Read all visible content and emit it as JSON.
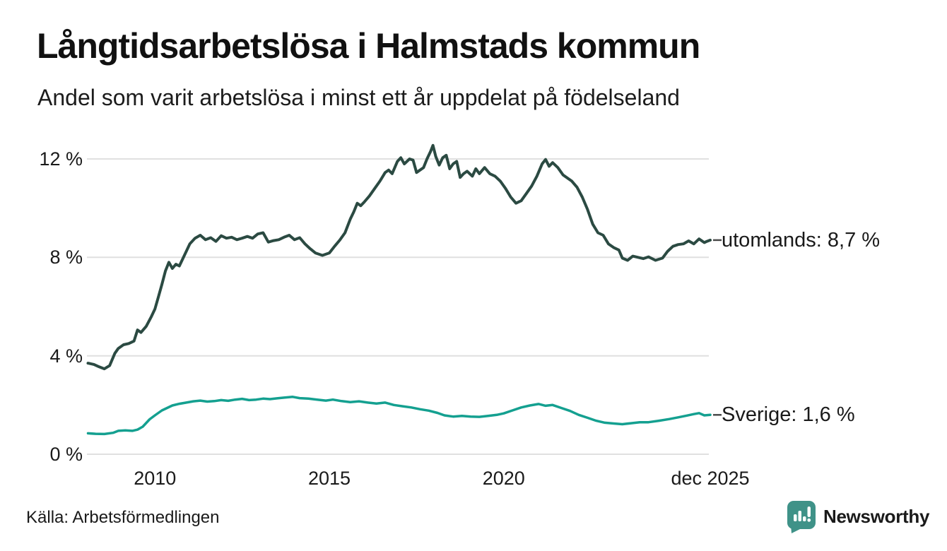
{
  "chart_data": {
    "type": "line",
    "title": "Långtidsarbetslösa i Halmstads kommun",
    "subtitle": "Andel som varit arbetslösa i minst ett år uppdelat på födelseland",
    "xlabel": "",
    "ylabel": "",
    "grid": true,
    "legend_position": "end-of-line-labels",
    "xlim": [
      2008.05,
      2025.92
    ],
    "ylim": [
      0,
      12
    ],
    "x_ticks": [
      {
        "value": 2010,
        "label": "2010"
      },
      {
        "value": 2015,
        "label": "2015"
      },
      {
        "value": 2020,
        "label": "2020"
      },
      {
        "value": 2025.92,
        "label": "dec 2025"
      }
    ],
    "y_ticks": [
      {
        "value": 12,
        "label": "12 %"
      },
      {
        "value": 8,
        "label": "8 %"
      },
      {
        "value": 4,
        "label": "4 %"
      },
      {
        "value": 0,
        "label": "0 %"
      }
    ],
    "series": [
      {
        "name": "utomlands",
        "label": "utomlands: 8,7 %",
        "end_value": 8.7,
        "color": "#2b4a42",
        "points": [
          [
            2008.08,
            3.7
          ],
          [
            2008.25,
            3.65
          ],
          [
            2008.4,
            3.55
          ],
          [
            2008.55,
            3.47
          ],
          [
            2008.7,
            3.6
          ],
          [
            2008.85,
            4.1
          ],
          [
            2008.95,
            4.3
          ],
          [
            2009.1,
            4.45
          ],
          [
            2009.25,
            4.5
          ],
          [
            2009.4,
            4.6
          ],
          [
            2009.5,
            5.05
          ],
          [
            2009.6,
            4.95
          ],
          [
            2009.75,
            5.2
          ],
          [
            2009.9,
            5.6
          ],
          [
            2010.0,
            5.9
          ],
          [
            2010.1,
            6.4
          ],
          [
            2010.2,
            6.9
          ],
          [
            2010.3,
            7.45
          ],
          [
            2010.4,
            7.8
          ],
          [
            2010.5,
            7.55
          ],
          [
            2010.6,
            7.72
          ],
          [
            2010.7,
            7.65
          ],
          [
            2010.85,
            8.1
          ],
          [
            2011.0,
            8.55
          ],
          [
            2011.15,
            8.78
          ],
          [
            2011.3,
            8.9
          ],
          [
            2011.45,
            8.72
          ],
          [
            2011.6,
            8.8
          ],
          [
            2011.75,
            8.65
          ],
          [
            2011.9,
            8.88
          ],
          [
            2012.05,
            8.78
          ],
          [
            2012.2,
            8.82
          ],
          [
            2012.35,
            8.72
          ],
          [
            2012.5,
            8.78
          ],
          [
            2012.65,
            8.85
          ],
          [
            2012.8,
            8.78
          ],
          [
            2012.95,
            8.95
          ],
          [
            2013.1,
            9.0
          ],
          [
            2013.25,
            8.62
          ],
          [
            2013.4,
            8.68
          ],
          [
            2013.55,
            8.72
          ],
          [
            2013.7,
            8.82
          ],
          [
            2013.85,
            8.9
          ],
          [
            2014.0,
            8.72
          ],
          [
            2014.15,
            8.8
          ],
          [
            2014.3,
            8.55
          ],
          [
            2014.45,
            8.35
          ],
          [
            2014.6,
            8.18
          ],
          [
            2014.8,
            8.08
          ],
          [
            2015.0,
            8.18
          ],
          [
            2015.15,
            8.45
          ],
          [
            2015.3,
            8.7
          ],
          [
            2015.45,
            9.0
          ],
          [
            2015.6,
            9.55
          ],
          [
            2015.7,
            9.85
          ],
          [
            2015.8,
            10.2
          ],
          [
            2015.9,
            10.1
          ],
          [
            2016.0,
            10.25
          ],
          [
            2016.15,
            10.5
          ],
          [
            2016.3,
            10.8
          ],
          [
            2016.45,
            11.1
          ],
          [
            2016.6,
            11.45
          ],
          [
            2016.7,
            11.55
          ],
          [
            2016.8,
            11.4
          ],
          [
            2016.95,
            11.9
          ],
          [
            2017.05,
            12.05
          ],
          [
            2017.15,
            11.8
          ],
          [
            2017.3,
            12.0
          ],
          [
            2017.4,
            11.95
          ],
          [
            2017.5,
            11.45
          ],
          [
            2017.6,
            11.55
          ],
          [
            2017.7,
            11.65
          ],
          [
            2017.8,
            12.0
          ],
          [
            2017.9,
            12.3
          ],
          [
            2017.97,
            12.55
          ],
          [
            2018.05,
            12.1
          ],
          [
            2018.15,
            11.75
          ],
          [
            2018.25,
            12.05
          ],
          [
            2018.35,
            12.15
          ],
          [
            2018.45,
            11.6
          ],
          [
            2018.55,
            11.8
          ],
          [
            2018.65,
            11.9
          ],
          [
            2018.75,
            11.25
          ],
          [
            2018.85,
            11.4
          ],
          [
            2018.95,
            11.5
          ],
          [
            2019.1,
            11.3
          ],
          [
            2019.2,
            11.6
          ],
          [
            2019.3,
            11.4
          ],
          [
            2019.45,
            11.65
          ],
          [
            2019.6,
            11.4
          ],
          [
            2019.75,
            11.3
          ],
          [
            2019.9,
            11.1
          ],
          [
            2020.05,
            10.8
          ],
          [
            2020.2,
            10.45
          ],
          [
            2020.35,
            10.2
          ],
          [
            2020.5,
            10.3
          ],
          [
            2020.65,
            10.6
          ],
          [
            2020.8,
            10.9
          ],
          [
            2020.95,
            11.3
          ],
          [
            2021.1,
            11.8
          ],
          [
            2021.2,
            11.98
          ],
          [
            2021.3,
            11.7
          ],
          [
            2021.4,
            11.85
          ],
          [
            2021.55,
            11.65
          ],
          [
            2021.7,
            11.35
          ],
          [
            2021.85,
            11.2
          ],
          [
            2021.95,
            11.1
          ],
          [
            2022.1,
            10.85
          ],
          [
            2022.25,
            10.45
          ],
          [
            2022.4,
            9.95
          ],
          [
            2022.55,
            9.35
          ],
          [
            2022.7,
            9.0
          ],
          [
            2022.85,
            8.9
          ],
          [
            2023.0,
            8.55
          ],
          [
            2023.15,
            8.4
          ],
          [
            2023.3,
            8.3
          ],
          [
            2023.4,
            7.97
          ],
          [
            2023.55,
            7.88
          ],
          [
            2023.7,
            8.05
          ],
          [
            2023.85,
            8.0
          ],
          [
            2024.0,
            7.95
          ],
          [
            2024.15,
            8.02
          ],
          [
            2024.35,
            7.88
          ],
          [
            2024.55,
            7.97
          ],
          [
            2024.7,
            8.25
          ],
          [
            2024.85,
            8.45
          ],
          [
            2025.0,
            8.52
          ],
          [
            2025.15,
            8.55
          ],
          [
            2025.3,
            8.67
          ],
          [
            2025.45,
            8.55
          ],
          [
            2025.6,
            8.75
          ],
          [
            2025.75,
            8.6
          ],
          [
            2025.82,
            8.65
          ],
          [
            2025.92,
            8.7
          ]
        ]
      },
      {
        "name": "Sverige",
        "label": "Sverige: 1,6 %",
        "end_value": 1.6,
        "color": "#14a090",
        "points": [
          [
            2008.08,
            0.85
          ],
          [
            2008.3,
            0.83
          ],
          [
            2008.55,
            0.82
          ],
          [
            2008.8,
            0.87
          ],
          [
            2008.95,
            0.95
          ],
          [
            2009.15,
            0.97
          ],
          [
            2009.35,
            0.95
          ],
          [
            2009.5,
            1.0
          ],
          [
            2009.65,
            1.12
          ],
          [
            2009.85,
            1.42
          ],
          [
            2010.0,
            1.58
          ],
          [
            2010.2,
            1.78
          ],
          [
            2010.35,
            1.88
          ],
          [
            2010.5,
            1.98
          ],
          [
            2010.7,
            2.05
          ],
          [
            2010.9,
            2.1
          ],
          [
            2011.1,
            2.15
          ],
          [
            2011.3,
            2.18
          ],
          [
            2011.5,
            2.14
          ],
          [
            2011.7,
            2.16
          ],
          [
            2011.9,
            2.2
          ],
          [
            2012.1,
            2.17
          ],
          [
            2012.3,
            2.22
          ],
          [
            2012.5,
            2.25
          ],
          [
            2012.7,
            2.2
          ],
          [
            2012.9,
            2.22
          ],
          [
            2013.1,
            2.26
          ],
          [
            2013.3,
            2.24
          ],
          [
            2013.5,
            2.27
          ],
          [
            2013.7,
            2.3
          ],
          [
            2013.95,
            2.33
          ],
          [
            2014.15,
            2.28
          ],
          [
            2014.4,
            2.26
          ],
          [
            2014.65,
            2.22
          ],
          [
            2014.9,
            2.18
          ],
          [
            2015.1,
            2.22
          ],
          [
            2015.35,
            2.16
          ],
          [
            2015.6,
            2.12
          ],
          [
            2015.85,
            2.15
          ],
          [
            2016.1,
            2.1
          ],
          [
            2016.35,
            2.06
          ],
          [
            2016.6,
            2.1
          ],
          [
            2016.85,
            2.0
          ],
          [
            2017.1,
            1.95
          ],
          [
            2017.35,
            1.9
          ],
          [
            2017.6,
            1.83
          ],
          [
            2017.85,
            1.77
          ],
          [
            2018.1,
            1.68
          ],
          [
            2018.3,
            1.58
          ],
          [
            2018.55,
            1.53
          ],
          [
            2018.8,
            1.56
          ],
          [
            2019.05,
            1.53
          ],
          [
            2019.3,
            1.52
          ],
          [
            2019.55,
            1.56
          ],
          [
            2019.8,
            1.6
          ],
          [
            2020.0,
            1.66
          ],
          [
            2020.25,
            1.78
          ],
          [
            2020.5,
            1.9
          ],
          [
            2020.75,
            1.98
          ],
          [
            2021.0,
            2.04
          ],
          [
            2021.2,
            1.97
          ],
          [
            2021.4,
            2.0
          ],
          [
            2021.65,
            1.88
          ],
          [
            2021.9,
            1.76
          ],
          [
            2022.15,
            1.6
          ],
          [
            2022.4,
            1.48
          ],
          [
            2022.65,
            1.36
          ],
          [
            2022.9,
            1.28
          ],
          [
            2023.15,
            1.25
          ],
          [
            2023.4,
            1.22
          ],
          [
            2023.65,
            1.26
          ],
          [
            2023.9,
            1.3
          ],
          [
            2024.15,
            1.3
          ],
          [
            2024.45,
            1.36
          ],
          [
            2024.75,
            1.43
          ],
          [
            2025.0,
            1.5
          ],
          [
            2025.25,
            1.57
          ],
          [
            2025.45,
            1.63
          ],
          [
            2025.6,
            1.67
          ],
          [
            2025.75,
            1.58
          ],
          [
            2025.92,
            1.6
          ]
        ]
      }
    ]
  },
  "source": "Källa: Arbetsförmedlingen",
  "brand": {
    "name": "Newsworthy",
    "icon": "newsworthy-speech-bubble-bar-chart-icon",
    "color": "#3f9288"
  },
  "colors": {
    "utomlands_line": "#2b4a42",
    "sverige_line": "#14a090",
    "grid": "#e0e0e0",
    "connector": "#4a4a4a",
    "text": "#1a1a1a",
    "brand": "#3f9288"
  }
}
